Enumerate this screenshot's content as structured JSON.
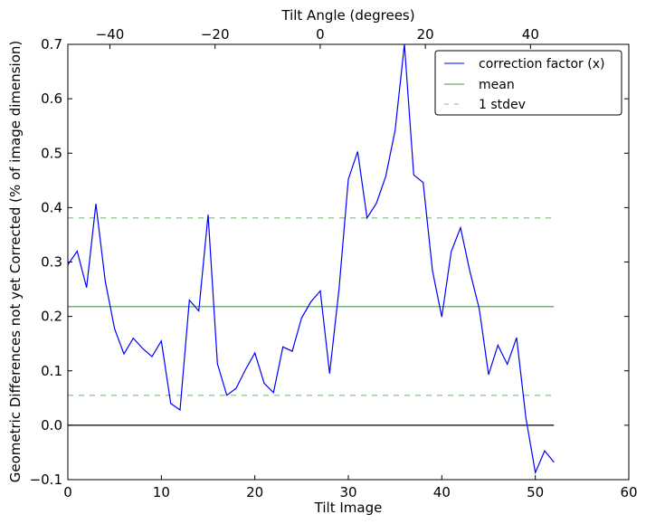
{
  "chart_data": {
    "type": "line",
    "xlabel": "Tilt Image",
    "ylabel": "Geometric Differences not yet Corrected (% of image dimension)",
    "x2label": "Tilt Angle (degrees)",
    "xlim": [
      0,
      60
    ],
    "ylim": [
      -0.1,
      0.7
    ],
    "x2lim": [
      -48,
      58.7
    ],
    "xticks": [
      0,
      10,
      20,
      30,
      40,
      50,
      60
    ],
    "yticks": [
      -0.1,
      0.0,
      0.1,
      0.2,
      0.3,
      0.4,
      0.5,
      0.6,
      0.7
    ],
    "ytick_labels": [
      "−0.1",
      "0.0",
      "0.1",
      "0.2",
      "0.3",
      "0.4",
      "0.5",
      "0.6",
      "0.7"
    ],
    "x2ticks": [
      -40,
      -20,
      0,
      20,
      40
    ],
    "x2tick_labels": [
      "−40",
      "−20",
      "0",
      "20",
      "40"
    ],
    "series": [
      {
        "name": "correction factor (x)",
        "color": "#0000ff",
        "style": "solid",
        "x": [
          0,
          1,
          2,
          3,
          4,
          5,
          6,
          7,
          8,
          9,
          10,
          11,
          12,
          13,
          14,
          15,
          16,
          17,
          18,
          19,
          20,
          21,
          22,
          23,
          24,
          25,
          26,
          27,
          28,
          29,
          30,
          31,
          32,
          33,
          34,
          35,
          36,
          37,
          38,
          39,
          40,
          41,
          42,
          43,
          44,
          45,
          46,
          47,
          48,
          49,
          50,
          51,
          52
        ],
        "values": [
          0.295,
          0.32,
          0.253,
          0.407,
          0.265,
          0.177,
          0.131,
          0.16,
          0.141,
          0.126,
          0.155,
          0.04,
          0.028,
          0.23,
          0.21,
          0.387,
          0.113,
          0.055,
          0.068,
          0.102,
          0.133,
          0.077,
          0.06,
          0.144,
          0.136,
          0.197,
          0.227,
          0.247,
          0.095,
          0.25,
          0.452,
          0.503,
          0.381,
          0.408,
          0.457,
          0.542,
          0.7,
          0.46,
          0.446,
          0.284,
          0.199,
          0.319,
          0.363,
          0.283,
          0.214,
          0.093,
          0.147,
          0.112,
          0.161,
          0.013,
          -0.087,
          -0.047,
          -0.068
        ]
      },
      {
        "name": "mean",
        "color": "#4a9a4a",
        "style": "solid",
        "x": [
          0,
          52
        ],
        "values": [
          0.218,
          0.218
        ]
      },
      {
        "name": "1 stdev",
        "color": "#7fbf7f",
        "style": "dashed",
        "x": [
          0,
          52
        ],
        "values": [
          0.381,
          0.381
        ]
      },
      {
        "name": "1 stdev lower",
        "color": "#7fbf7f",
        "style": "dashed",
        "x": [
          0,
          52
        ],
        "values": [
          0.055,
          0.055
        ]
      },
      {
        "name": "zero",
        "color": "#000000",
        "style": "solid",
        "x": [
          0,
          52
        ],
        "values": [
          0,
          0
        ]
      }
    ],
    "legend": {
      "placement": "top-right",
      "entries": [
        "correction factor (x)",
        "mean",
        "1 stdev"
      ]
    }
  }
}
